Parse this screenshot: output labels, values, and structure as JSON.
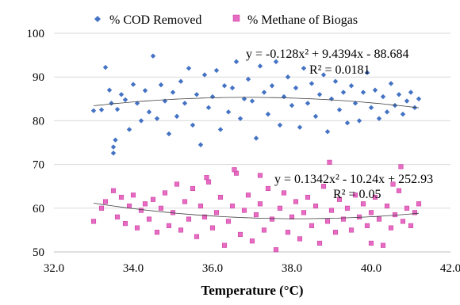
{
  "chart_data": {
    "type": "scatter",
    "title": "",
    "xlabel": "Temperature (°C)",
    "ylabel": "",
    "xlim": [
      32.0,
      42.0
    ],
    "ylim": [
      50,
      100
    ],
    "x_ticks": [
      "32.0",
      "34.0",
      "36.0",
      "38.0",
      "40.0",
      "42.0"
    ],
    "y_ticks": [
      "50",
      "60",
      "70",
      "80",
      "90",
      "100"
    ],
    "grid": "horizontal",
    "legend_position": "top",
    "series": [
      {
        "name": "% COD Removed",
        "marker": "diamond",
        "color": "#4472C4",
        "x_range": [
          33.0,
          41.2
        ],
        "trend": {
          "type": "polynomial",
          "coefficients": [
            -0.128,
            9.4394,
            -88.684
          ]
        },
        "equation": "y = -0.128x² + 9.4394x - 88.684",
        "r_squared": "R² = 0.0181",
        "points": [
          [
            33.0,
            82.3
          ],
          [
            33.2,
            82.5
          ],
          [
            33.3,
            92.2
          ],
          [
            33.4,
            87.0
          ],
          [
            33.45,
            84.0
          ],
          [
            33.5,
            74.0
          ],
          [
            33.5,
            72.6
          ],
          [
            33.55,
            75.6
          ],
          [
            33.6,
            82.6
          ],
          [
            33.7,
            86.0
          ],
          [
            33.8,
            84.8
          ],
          [
            33.9,
            78.0
          ],
          [
            34.0,
            88.3
          ],
          [
            34.1,
            84.0
          ],
          [
            34.2,
            80.0
          ],
          [
            34.3,
            86.9
          ],
          [
            34.4,
            82.0
          ],
          [
            34.5,
            94.8
          ],
          [
            34.6,
            80.5
          ],
          [
            34.7,
            88.2
          ],
          [
            34.8,
            84.5
          ],
          [
            34.9,
            77.0
          ],
          [
            35.0,
            86.5
          ],
          [
            35.1,
            81.0
          ],
          [
            35.2,
            89.0
          ],
          [
            35.3,
            84.0
          ],
          [
            35.4,
            92.0
          ],
          [
            35.5,
            79.0
          ],
          [
            35.6,
            86.0
          ],
          [
            35.7,
            74.5
          ],
          [
            35.8,
            90.5
          ],
          [
            35.9,
            83.0
          ],
          [
            36.0,
            85.5
          ],
          [
            36.1,
            91.5
          ],
          [
            36.2,
            78.0
          ],
          [
            36.3,
            88.0
          ],
          [
            36.4,
            82.0
          ],
          [
            36.5,
            87.5
          ],
          [
            36.6,
            93.5
          ],
          [
            36.7,
            80.5
          ],
          [
            36.8,
            85.0
          ],
          [
            36.9,
            89.5
          ],
          [
            37.0,
            84.5
          ],
          [
            37.1,
            76.0
          ],
          [
            37.2,
            92.5
          ],
          [
            37.3,
            86.5
          ],
          [
            37.4,
            81.5
          ],
          [
            37.5,
            88.0
          ],
          [
            37.6,
            93.5
          ],
          [
            37.7,
            79.0
          ],
          [
            37.8,
            85.5
          ],
          [
            37.9,
            90.0
          ],
          [
            38.0,
            83.5
          ],
          [
            38.1,
            87.5
          ],
          [
            38.2,
            78.5
          ],
          [
            38.3,
            92.0
          ],
          [
            38.4,
            84.0
          ],
          [
            38.5,
            88.5
          ],
          [
            38.6,
            81.0
          ],
          [
            38.7,
            86.0
          ],
          [
            38.8,
            90.5
          ],
          [
            38.9,
            77.5
          ],
          [
            39.0,
            85.0
          ],
          [
            39.1,
            89.0
          ],
          [
            39.2,
            82.5
          ],
          [
            39.3,
            86.5
          ],
          [
            39.4,
            79.5
          ],
          [
            39.5,
            88.0
          ],
          [
            39.6,
            84.0
          ],
          [
            39.7,
            80.0
          ],
          [
            39.8,
            86.5
          ],
          [
            39.9,
            91.0
          ],
          [
            40.0,
            83.0
          ],
          [
            40.1,
            87.0
          ],
          [
            40.2,
            80.5
          ],
          [
            40.3,
            85.5
          ],
          [
            40.4,
            82.0
          ],
          [
            40.5,
            88.5
          ],
          [
            40.6,
            83.5
          ],
          [
            40.7,
            86.0
          ],
          [
            40.8,
            81.5
          ],
          [
            40.9,
            84.5
          ],
          [
            41.0,
            86.5
          ],
          [
            41.1,
            83.0
          ],
          [
            41.2,
            85.0
          ]
        ]
      },
      {
        "name": "% Methane of Biogas",
        "marker": "square",
        "color": "#E86BC3",
        "x_range": [
          33.0,
          41.2
        ],
        "trend": {
          "type": "polynomial",
          "coefficients": [
            0.1342,
            -10.24,
            252.93
          ]
        },
        "equation": "y = 0.1342x² - 10.24x + 252.93",
        "r_squared": "R² = 0.05",
        "points": [
          [
            33.0,
            57.0
          ],
          [
            33.2,
            60.0
          ],
          [
            33.3,
            61.5
          ],
          [
            33.5,
            64.0
          ],
          [
            33.6,
            58.0
          ],
          [
            33.7,
            62.5
          ],
          [
            33.8,
            56.5
          ],
          [
            33.9,
            60.5
          ],
          [
            34.0,
            63.0
          ],
          [
            34.1,
            55.5
          ],
          [
            34.2,
            59.5
          ],
          [
            34.3,
            61.0
          ],
          [
            34.4,
            57.5
          ],
          [
            34.5,
            62.0
          ],
          [
            34.6,
            54.5
          ],
          [
            34.7,
            60.0
          ],
          [
            34.8,
            63.5
          ],
          [
            34.9,
            56.0
          ],
          [
            35.0,
            59.0
          ],
          [
            35.1,
            65.5
          ],
          [
            35.2,
            55.0
          ],
          [
            35.3,
            61.5
          ],
          [
            35.4,
            57.5
          ],
          [
            35.5,
            64.5
          ],
          [
            35.6,
            53.5
          ],
          [
            35.7,
            60.5
          ],
          [
            35.8,
            58.0
          ],
          [
            35.9,
            66.0
          ],
          [
            36.0,
            55.5
          ],
          [
            36.1,
            59.0
          ],
          [
            36.2,
            62.5
          ],
          [
            36.3,
            51.5
          ],
          [
            36.4,
            57.0
          ],
          [
            36.5,
            60.5
          ],
          [
            36.6,
            68.0
          ],
          [
            36.7,
            54.0
          ],
          [
            36.8,
            59.5
          ],
          [
            36.9,
            63.0
          ],
          [
            37.0,
            52.5
          ],
          [
            37.1,
            58.5
          ],
          [
            37.2,
            61.0
          ],
          [
            37.3,
            55.0
          ],
          [
            37.4,
            64.5
          ],
          [
            37.5,
            57.5
          ],
          [
            37.6,
            50.5
          ],
          [
            37.7,
            60.0
          ],
          [
            37.8,
            63.5
          ],
          [
            37.9,
            54.5
          ],
          [
            38.0,
            58.0
          ],
          [
            38.1,
            61.5
          ],
          [
            38.2,
            53.0
          ],
          [
            38.3,
            59.0
          ],
          [
            38.4,
            62.5
          ],
          [
            38.5,
            56.0
          ],
          [
            38.6,
            60.5
          ],
          [
            38.7,
            52.0
          ],
          [
            38.8,
            65.0
          ],
          [
            38.9,
            57.0
          ],
          [
            39.0,
            59.5
          ],
          [
            39.1,
            54.5
          ],
          [
            39.2,
            62.0
          ],
          [
            39.3,
            57.5
          ],
          [
            39.4,
            60.0
          ],
          [
            39.5,
            55.0
          ],
          [
            39.6,
            63.0
          ],
          [
            39.7,
            58.0
          ],
          [
            39.8,
            61.0
          ],
          [
            39.9,
            56.0
          ],
          [
            40.0,
            59.0
          ],
          [
            40.1,
            62.5
          ],
          [
            40.2,
            57.5
          ],
          [
            40.3,
            51.5
          ],
          [
            40.4,
            60.5
          ],
          [
            40.5,
            55.5
          ],
          [
            40.6,
            58.5
          ],
          [
            40.7,
            64.0
          ],
          [
            40.8,
            57.0
          ],
          [
            40.9,
            60.0
          ],
          [
            41.0,
            56.0
          ],
          [
            41.1,
            59.0
          ],
          [
            41.2,
            61.0
          ],
          [
            38.95,
            70.5
          ],
          [
            40.75,
            69.5
          ],
          [
            37.2,
            67.5
          ],
          [
            36.55,
            68.8
          ],
          [
            35.85,
            67.0
          ],
          [
            40.55,
            65.5
          ],
          [
            40.0,
            52.0
          ]
        ]
      }
    ]
  },
  "legend": [
    {
      "label": "% COD Removed",
      "marker": "diamond",
      "color": "#4472C4"
    },
    {
      "label": "% Methane of Biogas",
      "marker": "square",
      "color": "#E86BC3"
    }
  ],
  "annotations": {
    "cod_equation": "y = -0.128x² + 9.4394x - 88.684",
    "cod_r2": "R² = 0.0181",
    "methane_equation": "y = 0.1342x² - 10.24x + 252.93",
    "methane_r2": "R² = 0.05"
  },
  "colors": {
    "cod": "#4472C4",
    "methane": "#E86BC3",
    "methane_edge": "#C2389A",
    "gridline": "#D9D9D9",
    "trendline": "#404040"
  }
}
